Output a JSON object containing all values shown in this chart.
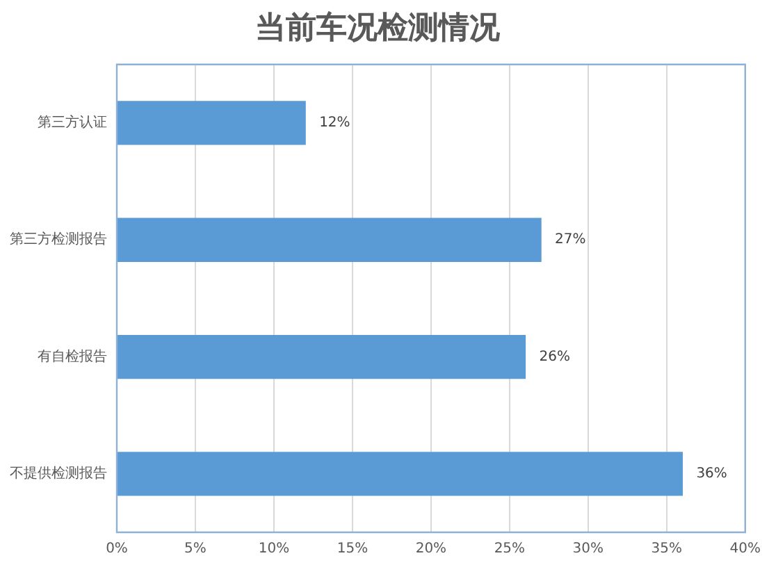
{
  "chart_data": {
    "type": "bar",
    "title": "当前车况检测情况",
    "orientation": "horizontal",
    "categories": [
      "第三方认证",
      "第三方检测报告",
      "有自检报告",
      "不提供检测报告"
    ],
    "values": [
      12,
      27,
      26,
      36
    ],
    "color": "#5b9bd5",
    "value_labels": [
      "12%",
      "27%",
      "26%",
      "36%"
    ],
    "xlim": [
      0,
      40
    ],
    "xticks": [
      {
        "value": 0,
        "label": "0%"
      },
      {
        "value": 5,
        "label": "5%"
      },
      {
        "value": 10,
        "label": "10%"
      },
      {
        "value": 15,
        "label": "15%"
      },
      {
        "value": 20,
        "label": "20%"
      },
      {
        "value": 25,
        "label": "25%"
      },
      {
        "value": 30,
        "label": "30%"
      },
      {
        "value": 35,
        "label": "35%"
      },
      {
        "value": 40,
        "label": "40%"
      }
    ],
    "grid": "x"
  }
}
